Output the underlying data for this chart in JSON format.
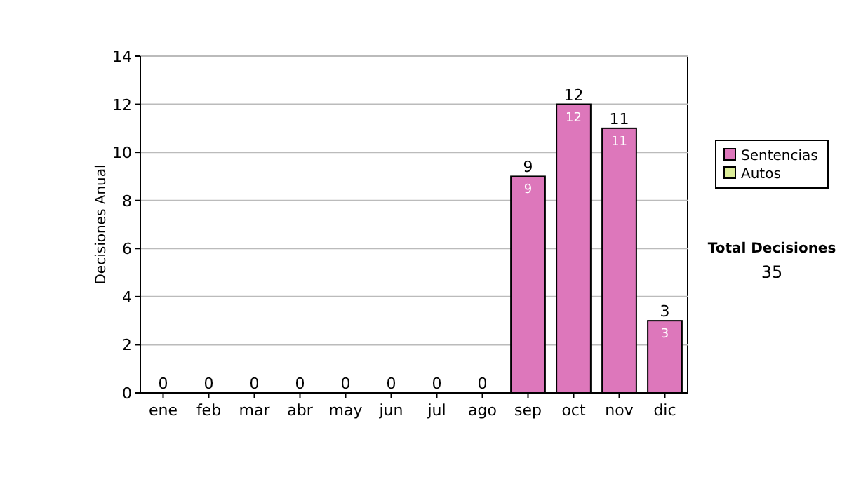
{
  "chart_data": {
    "type": "bar",
    "stacked": true,
    "ylabel": "Decisiones Anual",
    "categories": [
      "ene",
      "feb",
      "mar",
      "abr",
      "may",
      "jun",
      "jul",
      "ago",
      "sep",
      "oct",
      "nov",
      "dic"
    ],
    "series": [
      {
        "name": "Sentencias",
        "color": "#dd77bb",
        "values": [
          0,
          0,
          0,
          0,
          0,
          0,
          0,
          0,
          9,
          12,
          11,
          3
        ],
        "value_labels": [
          null,
          null,
          null,
          null,
          null,
          null,
          null,
          null,
          "9",
          "12",
          "11",
          "3"
        ]
      },
      {
        "name": "Autos",
        "color": "#ddee99",
        "values": [
          0,
          0,
          0,
          0,
          0,
          0,
          0,
          0,
          0,
          0,
          0,
          0
        ]
      }
    ],
    "totals": [
      "0",
      "0",
      "0",
      "0",
      "0",
      "0",
      "0",
      "0",
      "9",
      "12",
      "11",
      "3"
    ],
    "ylim": [
      0,
      14
    ],
    "yticks": [
      0,
      2,
      4,
      6,
      8,
      10,
      12,
      14
    ],
    "grid": "y",
    "legend": "right",
    "annotations": [
      "Total Decisiones",
      "35"
    ]
  }
}
